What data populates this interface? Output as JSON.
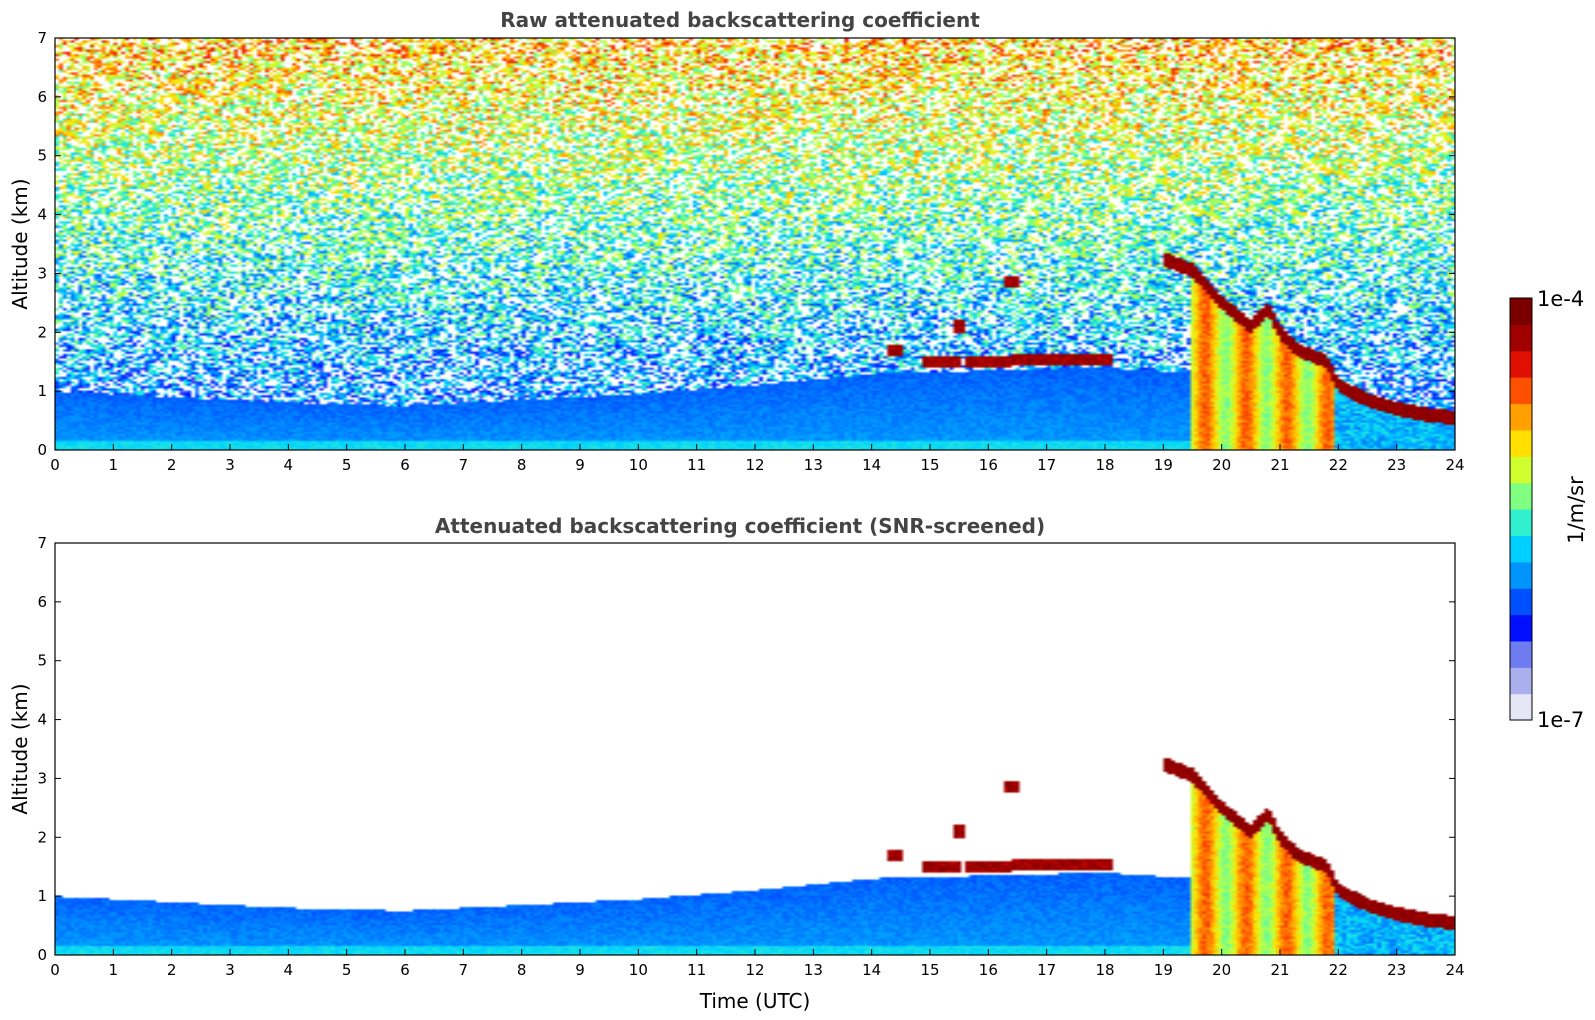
{
  "chart_data": [
    {
      "type": "heatmap",
      "title": "Raw attenuated backscattering coefficient",
      "xlabel": "",
      "ylabel": "Altitude (km)",
      "xlim": [
        0,
        24
      ],
      "ylim": [
        0,
        7
      ],
      "xticks": [
        "0",
        "1",
        "2",
        "3",
        "4",
        "5",
        "6",
        "7",
        "8",
        "9",
        "10",
        "11",
        "12",
        "13",
        "14",
        "15",
        "16",
        "17",
        "18",
        "19",
        "20",
        "21",
        "22",
        "23",
        "24"
      ],
      "yticks": [
        "0",
        "1",
        "2",
        "3",
        "4",
        "5",
        "6",
        "7"
      ],
      "noise": "high",
      "boundary_layer_top_km": [
        [
          0,
          1.0
        ],
        [
          2,
          0.9
        ],
        [
          4,
          0.8
        ],
        [
          6,
          0.75
        ],
        [
          8,
          0.85
        ],
        [
          10,
          0.95
        ],
        [
          12,
          1.1
        ],
        [
          14,
          1.3
        ],
        [
          16,
          1.35
        ],
        [
          18,
          1.4
        ],
        [
          19.5,
          1.3
        ]
      ],
      "clouds": [
        {
          "x": [
            14.3,
            14.5
          ],
          "alt_km": 1.7
        },
        {
          "x": [
            14.9,
            15.5
          ],
          "alt_km": 1.5
        },
        {
          "x": [
            15.6,
            16.4
          ],
          "alt_km": 1.5
        },
        {
          "x": [
            16.4,
            18.1
          ],
          "alt_km": 1.55
        },
        {
          "x": [
            16.3,
            16.5
          ],
          "alt_km": 2.85
        },
        {
          "x": [
            15.4,
            15.6
          ],
          "alt_km": 2.1
        }
      ],
      "thick_cloud": {
        "x": [
          19.5,
          24
        ],
        "top_km": [
          [
            19.0,
            3.25
          ],
          [
            19.5,
            3.05
          ],
          [
            20.0,
            2.5
          ],
          [
            20.5,
            2.1
          ],
          [
            20.8,
            2.4
          ],
          [
            21.0,
            2.0
          ],
          [
            21.3,
            1.7
          ],
          [
            21.8,
            1.5
          ],
          [
            22.0,
            1.1
          ],
          [
            22.5,
            0.85
          ],
          [
            23.0,
            0.7
          ],
          [
            23.5,
            0.6
          ],
          [
            24.0,
            0.55
          ]
        ]
      }
    },
    {
      "type": "heatmap",
      "title": "Attenuated backscattering coefficient (SNR-screened)",
      "xlabel": "Time (UTC)",
      "ylabel": "Altitude (km)",
      "xlim": [
        0,
        24
      ],
      "ylim": [
        0,
        7
      ],
      "xticks": [
        "0",
        "1",
        "2",
        "3",
        "4",
        "5",
        "6",
        "7",
        "8",
        "9",
        "10",
        "11",
        "12",
        "13",
        "14",
        "15",
        "16",
        "17",
        "18",
        "19",
        "20",
        "21",
        "22",
        "23",
        "24"
      ],
      "yticks": [
        "0",
        "1",
        "2",
        "3",
        "4",
        "5",
        "6",
        "7"
      ],
      "noise": "screened",
      "boundary_layer_top_km": [
        [
          0,
          1.0
        ],
        [
          2,
          0.9
        ],
        [
          4,
          0.8
        ],
        [
          6,
          0.75
        ],
        [
          8,
          0.85
        ],
        [
          10,
          0.95
        ],
        [
          12,
          1.1
        ],
        [
          14,
          1.3
        ],
        [
          16,
          1.35
        ],
        [
          18,
          1.4
        ],
        [
          19.5,
          1.3
        ]
      ],
      "clouds": [
        {
          "x": [
            14.3,
            14.5
          ],
          "alt_km": 1.7
        },
        {
          "x": [
            14.9,
            15.5
          ],
          "alt_km": 1.5
        },
        {
          "x": [
            15.6,
            16.4
          ],
          "alt_km": 1.5
        },
        {
          "x": [
            16.4,
            18.1
          ],
          "alt_km": 1.55
        },
        {
          "x": [
            16.3,
            16.5
          ],
          "alt_km": 2.85
        },
        {
          "x": [
            15.4,
            15.6
          ],
          "alt_km": 2.1
        }
      ],
      "thick_cloud": {
        "x": [
          19.5,
          24
        ],
        "top_km": [
          [
            19.0,
            3.25
          ],
          [
            19.5,
            3.05
          ],
          [
            20.0,
            2.5
          ],
          [
            20.5,
            2.1
          ],
          [
            20.8,
            2.4
          ],
          [
            21.0,
            2.0
          ],
          [
            21.3,
            1.7
          ],
          [
            21.8,
            1.5
          ],
          [
            22.0,
            1.1
          ],
          [
            22.5,
            0.85
          ],
          [
            23.0,
            0.7
          ],
          [
            23.5,
            0.6
          ],
          [
            24.0,
            0.55
          ]
        ]
      }
    }
  ],
  "colorbar": {
    "label": "1/m/sr",
    "max_label": "1e-4",
    "min_label": "1e-7",
    "colors": [
      "#e6e6f7",
      "#aab0ee",
      "#6f7cf0",
      "#0010ff",
      "#0050ff",
      "#0094ff",
      "#00d0ff",
      "#30f0d0",
      "#80ff80",
      "#d0ff30",
      "#ffe000",
      "#ffa000",
      "#ff5000",
      "#e01000",
      "#a00000",
      "#7a0000"
    ]
  }
}
